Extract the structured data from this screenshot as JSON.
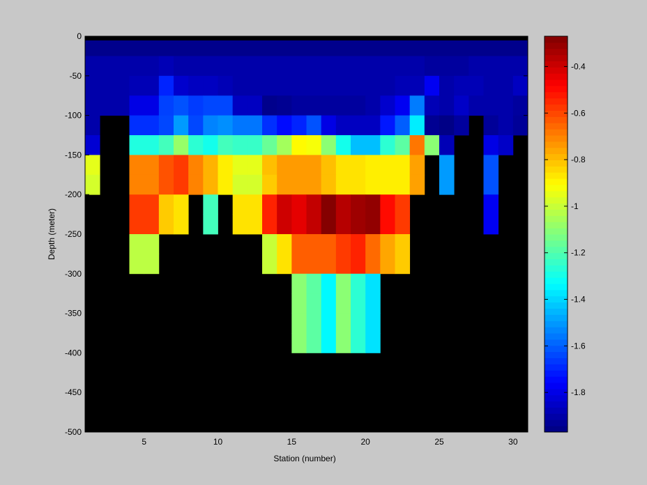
{
  "chart_data": {
    "type": "heatmap",
    "title": "",
    "xlabel": "Station (number)",
    "ylabel": "Depth (meter)",
    "x": [
      1,
      2,
      3,
      4,
      5,
      6,
      7,
      8,
      9,
      10,
      11,
      12,
      13,
      14,
      15,
      16,
      17,
      18,
      19,
      20,
      21,
      22,
      23,
      24,
      25,
      26,
      27,
      28,
      29,
      30,
      31
    ],
    "y": [
      0,
      -25,
      -50,
      -75,
      -100,
      -125,
      -150,
      -175,
      -200,
      -225,
      -250,
      -275,
      -300,
      -325,
      -350,
      -375,
      -400,
      -425,
      -450,
      -475,
      -500
    ],
    "xlim": [
      1,
      31
    ],
    "ylim": [
      -500,
      0
    ],
    "xticks": [
      5,
      10,
      15,
      20,
      25,
      30
    ],
    "yticks": [
      0,
      -50,
      -100,
      -150,
      -200,
      -250,
      -300,
      -350,
      -400,
      -450,
      -500
    ],
    "colorbar": {
      "colormap": "jet",
      "clim": [
        -1.97,
        -0.27
      ],
      "ticks": [
        -0.4,
        -0.6,
        -0.8,
        -1,
        -1.2,
        -1.4,
        -1.6,
        -1.8
      ]
    },
    "nodata_color": "#000000",
    "values": [
      [
        -1.95,
        -1.95,
        -1.95,
        -1.95,
        -1.95,
        -1.95,
        -1.95,
        -1.95,
        -1.95,
        -1.95,
        -1.95,
        -1.95,
        -1.95,
        -1.95,
        -1.95,
        -1.95,
        -1.95,
        -1.95,
        -1.95,
        -1.95,
        -1.95,
        -1.95,
        -1.95,
        -1.95,
        -1.95,
        -1.95,
        -1.95,
        -1.95,
        -1.95,
        -1.95
      ],
      [
        -1.9,
        -1.9,
        -1.9,
        -1.9,
        -1.9,
        -1.88,
        -1.9,
        -1.9,
        -1.9,
        -1.9,
        -1.9,
        -1.9,
        -1.9,
        -1.9,
        -1.9,
        -1.9,
        -1.9,
        -1.9,
        -1.9,
        -1.9,
        -1.9,
        -1.9,
        -1.9,
        -1.92,
        -1.92,
        -1.92,
        -1.9,
        -1.9,
        -1.9,
        -1.9
      ],
      [
        -1.9,
        -1.9,
        -1.9,
        -1.88,
        -1.88,
        -1.7,
        -1.84,
        -1.86,
        -1.86,
        -1.88,
        -1.9,
        -1.9,
        -1.9,
        -1.9,
        -1.9,
        -1.9,
        -1.9,
        -1.9,
        -1.9,
        -1.9,
        -1.9,
        -1.88,
        -1.88,
        -1.78,
        -1.9,
        -1.88,
        -1.88,
        -1.9,
        -1.9,
        -1.86
      ],
      [
        -1.9,
        -1.9,
        -1.9,
        -1.8,
        -1.8,
        -1.65,
        -1.62,
        -1.66,
        -1.64,
        -1.64,
        -1.86,
        -1.86,
        -1.95,
        -1.94,
        -1.92,
        -1.92,
        -1.92,
        -1.92,
        -1.92,
        -1.9,
        -1.84,
        -1.78,
        -1.55,
        -1.88,
        -1.9,
        -1.85,
        -1.9,
        -1.9,
        -1.9,
        -1.92
      ],
      [
        -1.9,
        null,
        null,
        -1.68,
        -1.68,
        -1.64,
        -1.5,
        -1.64,
        -1.54,
        -1.52,
        -1.56,
        -1.56,
        -1.68,
        -1.74,
        -1.7,
        -1.62,
        -1.8,
        -1.86,
        -1.86,
        -1.86,
        -1.72,
        -1.6,
        -1.36,
        -1.94,
        -1.96,
        -1.92,
        null,
        -1.93,
        -1.9,
        -1.93
      ],
      [
        -1.83,
        null,
        null,
        -1.28,
        -1.28,
        -1.22,
        -1.08,
        -1.26,
        -1.3,
        -1.22,
        -1.24,
        -1.24,
        -1.16,
        -1.06,
        -0.9,
        -0.92,
        -1.1,
        -1.3,
        -1.44,
        -1.44,
        -1.26,
        -1.18,
        -0.68,
        -1.1,
        -1.88,
        null,
        null,
        -1.8,
        -1.85,
        null
      ],
      [
        -0.95,
        null,
        null,
        -0.7,
        -0.7,
        -0.62,
        -0.58,
        -0.7,
        -0.78,
        -0.88,
        -0.95,
        -0.95,
        -0.8,
        -0.74,
        -0.74,
        -0.74,
        -0.8,
        -0.86,
        -0.86,
        -0.88,
        -0.88,
        -0.88,
        -0.75,
        null,
        -1.5,
        null,
        null,
        -1.62,
        null,
        null
      ],
      [
        -0.98,
        null,
        null,
        -0.7,
        -0.7,
        -0.62,
        -0.58,
        -0.7,
        -0.78,
        -0.88,
        -0.98,
        -0.98,
        -0.82,
        -0.74,
        -0.74,
        -0.74,
        -0.8,
        -0.86,
        -0.86,
        -0.88,
        -0.88,
        -0.88,
        -0.75,
        null,
        -1.5,
        null,
        null,
        -1.62,
        null,
        null
      ],
      [
        null,
        null,
        null,
        -0.58,
        -0.58,
        -0.82,
        -0.86,
        null,
        -1.22,
        null,
        -0.86,
        -0.86,
        -0.54,
        -0.4,
        -0.44,
        -0.38,
        -0.28,
        -0.36,
        -0.32,
        -0.3,
        -0.5,
        -0.58,
        null,
        null,
        null,
        null,
        null,
        -1.78,
        null,
        null
      ],
      [
        null,
        null,
        null,
        -0.58,
        -0.58,
        -0.82,
        -0.86,
        null,
        -1.22,
        null,
        -0.86,
        -0.86,
        -0.54,
        -0.4,
        -0.44,
        -0.38,
        -0.28,
        -0.36,
        -0.32,
        -0.3,
        -0.5,
        -0.58,
        null,
        null,
        null,
        null,
        null,
        -1.78,
        null,
        null
      ],
      [
        null,
        null,
        null,
        -1.02,
        -1.02,
        null,
        null,
        null,
        null,
        null,
        null,
        null,
        -1.0,
        -0.86,
        -0.64,
        -0.64,
        -0.64,
        -0.58,
        -0.54,
        -0.66,
        -0.76,
        -0.82,
        null,
        null,
        null,
        null,
        null,
        null,
        null,
        null
      ],
      [
        null,
        null,
        null,
        -1.02,
        -1.02,
        null,
        null,
        null,
        null,
        null,
        null,
        null,
        -1.0,
        -0.86,
        -0.64,
        -0.64,
        -0.64,
        -0.58,
        -0.54,
        -0.66,
        -0.76,
        -0.82,
        null,
        null,
        null,
        null,
        null,
        null,
        null,
        null
      ],
      [
        null,
        null,
        null,
        null,
        null,
        null,
        null,
        null,
        null,
        null,
        null,
        null,
        null,
        null,
        -1.1,
        -1.18,
        -1.34,
        -1.1,
        -1.26,
        -1.38,
        null,
        null,
        null,
        null,
        null,
        null,
        null,
        null,
        null,
        null
      ],
      [
        null,
        null,
        null,
        null,
        null,
        null,
        null,
        null,
        null,
        null,
        null,
        null,
        null,
        null,
        -1.1,
        -1.18,
        -1.34,
        -1.1,
        -1.26,
        -1.38,
        null,
        null,
        null,
        null,
        null,
        null,
        null,
        null,
        null,
        null
      ],
      [
        null,
        null,
        null,
        null,
        null,
        null,
        null,
        null,
        null,
        null,
        null,
        null,
        null,
        null,
        -1.1,
        -1.18,
        -1.34,
        -1.1,
        -1.26,
        -1.38,
        null,
        null,
        null,
        null,
        null,
        null,
        null,
        null,
        null,
        null
      ],
      [
        null,
        null,
        null,
        null,
        null,
        null,
        null,
        null,
        null,
        null,
        null,
        null,
        null,
        null,
        -1.1,
        -1.18,
        -1.34,
        -1.1,
        -1.26,
        -1.38,
        null,
        null,
        null,
        null,
        null,
        null,
        null,
        null,
        null,
        null
      ],
      [
        null,
        null,
        null,
        null,
        null,
        null,
        null,
        null,
        null,
        null,
        null,
        null,
        null,
        null,
        null,
        null,
        null,
        null,
        null,
        null,
        null,
        null,
        null,
        null,
        null,
        null,
        null,
        null,
        null,
        null
      ],
      [
        null,
        null,
        null,
        null,
        null,
        null,
        null,
        null,
        null,
        null,
        null,
        null,
        null,
        null,
        null,
        null,
        null,
        null,
        null,
        null,
        null,
        null,
        null,
        null,
        null,
        null,
        null,
        null,
        null,
        null
      ],
      [
        null,
        null,
        null,
        null,
        null,
        null,
        null,
        null,
        null,
        null,
        null,
        null,
        null,
        null,
        null,
        null,
        null,
        null,
        null,
        null,
        null,
        null,
        null,
        null,
        null,
        null,
        null,
        null,
        null,
        null
      ],
      [
        null,
        null,
        null,
        null,
        null,
        null,
        null,
        null,
        null,
        null,
        null,
        null,
        null,
        null,
        null,
        null,
        null,
        null,
        null,
        null,
        null,
        null,
        null,
        null,
        null,
        null,
        null,
        null,
        null,
        null
      ]
    ]
  }
}
